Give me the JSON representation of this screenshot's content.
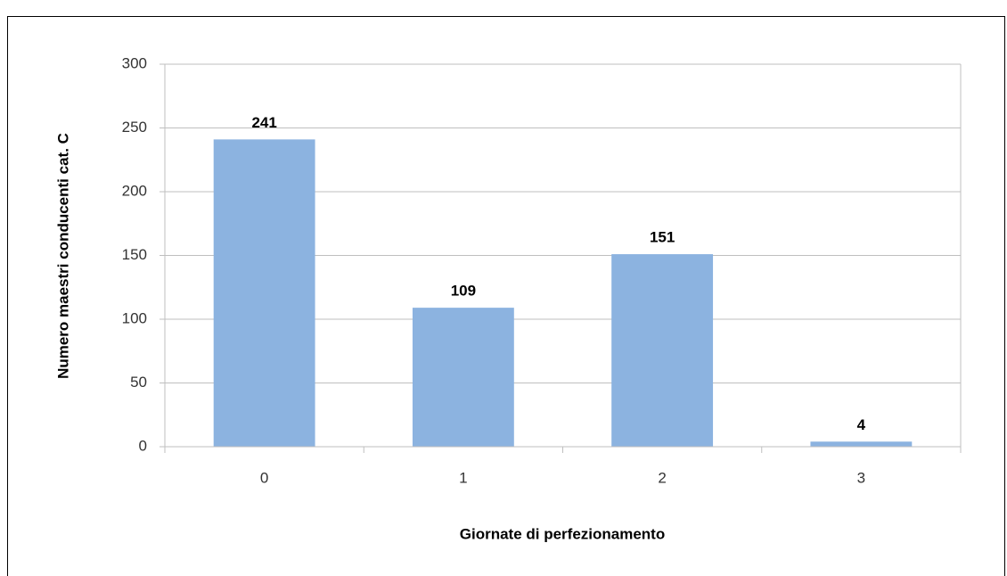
{
  "chart_data": {
    "type": "bar",
    "x_label": "Giornate di perfezionamento",
    "y_label": "Numero maestri conducenti cat. C",
    "categories": [
      "0",
      "1",
      "2",
      "3"
    ],
    "values": [
      241,
      109,
      151,
      4
    ],
    "color": "#8cb3e0",
    "ylim": [
      0,
      300
    ],
    "yticks": [
      0,
      50,
      100,
      150,
      200,
      250,
      300
    ],
    "grid": true
  }
}
